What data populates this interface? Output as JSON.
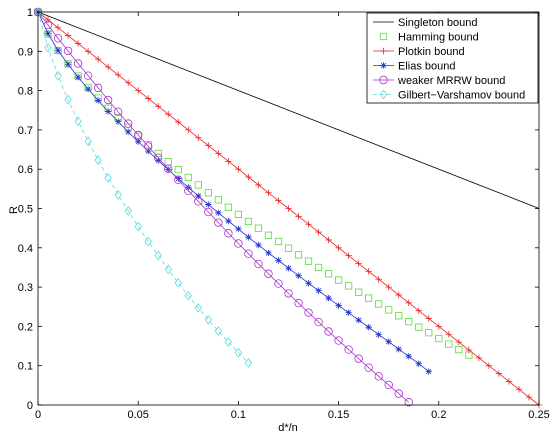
{
  "chart_data": {
    "type": "line",
    "title": "",
    "xlabel": "d*/n",
    "ylabel": "R",
    "xlim": [
      0,
      0.25
    ],
    "ylim": [
      0,
      1
    ],
    "xticks": [
      0,
      0.05,
      0.1,
      0.15,
      0.2,
      0.25
    ],
    "xtick_labels": [
      "0",
      "0.05",
      "0.1",
      "0.15",
      "0.2",
      "0.25"
    ],
    "yticks": [
      0,
      0.1,
      0.2,
      0.3,
      0.4,
      0.5,
      0.6,
      0.7,
      0.8,
      0.9,
      1
    ],
    "ytick_labels": [
      "0",
      "0.1",
      "0.2",
      "0.3",
      "0.4",
      "0.5",
      "0.6",
      "0.7",
      "0.8",
      "0.9",
      "1"
    ],
    "grid": false,
    "legend_position": "top-right",
    "series": [
      {
        "name": "Singleton bound",
        "color": "#000000",
        "marker": "none",
        "line": "solid",
        "linewidth": 0.8,
        "x": [
          0,
          0.25
        ],
        "y": [
          1,
          0.5
        ]
      },
      {
        "name": "Hamming bound",
        "color": "#55dd33",
        "marker": "square",
        "line": "none",
        "x": [
          0,
          0.005,
          0.01,
          0.015,
          0.02,
          0.025,
          0.03,
          0.035,
          0.04,
          0.045,
          0.05,
          0.055,
          0.06,
          0.065,
          0.07,
          0.075,
          0.08,
          0.085,
          0.09,
          0.095,
          0.1,
          0.105,
          0.11,
          0.115,
          0.12,
          0.125,
          0.13,
          0.135,
          0.14,
          0.145,
          0.15,
          0.155,
          0.16,
          0.165,
          0.17,
          0.175,
          0.18,
          0.185,
          0.19,
          0.195,
          0.2,
          0.205,
          0.21,
          0.215
        ],
        "y": [
          1,
          0.944,
          0.902,
          0.868,
          0.837,
          0.808,
          0.781,
          0.755,
          0.731,
          0.707,
          0.684,
          0.662,
          0.64,
          0.619,
          0.599,
          0.579,
          0.56,
          0.54,
          0.522,
          0.503,
          0.485,
          0.467,
          0.45,
          0.432,
          0.416,
          0.399,
          0.382,
          0.366,
          0.35,
          0.334,
          0.318,
          0.303,
          0.287,
          0.272,
          0.257,
          0.242,
          0.227,
          0.212,
          0.198,
          0.184,
          0.169,
          0.155,
          0.141,
          0.127
        ]
      },
      {
        "name": "Plotkin bound",
        "color": "#ee2222",
        "marker": "plus",
        "line": "solid",
        "linewidth": 0.8,
        "x": [
          0,
          0.005,
          0.01,
          0.015,
          0.02,
          0.025,
          0.03,
          0.035,
          0.04,
          0.045,
          0.05,
          0.055,
          0.06,
          0.065,
          0.07,
          0.075,
          0.08,
          0.085,
          0.09,
          0.095,
          0.1,
          0.105,
          0.11,
          0.115,
          0.12,
          0.125,
          0.13,
          0.135,
          0.14,
          0.145,
          0.15,
          0.155,
          0.16,
          0.165,
          0.17,
          0.175,
          0.18,
          0.185,
          0.19,
          0.195,
          0.2,
          0.205,
          0.21,
          0.215,
          0.22,
          0.225,
          0.23,
          0.235,
          0.24,
          0.245,
          0.25
        ],
        "y": [
          1,
          0.98,
          0.96,
          0.94,
          0.92,
          0.9,
          0.88,
          0.86,
          0.84,
          0.82,
          0.8,
          0.78,
          0.76,
          0.74,
          0.72,
          0.7,
          0.68,
          0.66,
          0.64,
          0.62,
          0.6,
          0.58,
          0.56,
          0.54,
          0.52,
          0.5,
          0.48,
          0.46,
          0.44,
          0.42,
          0.4,
          0.38,
          0.36,
          0.34,
          0.32,
          0.3,
          0.28,
          0.26,
          0.24,
          0.22,
          0.2,
          0.18,
          0.16,
          0.14,
          0.12,
          0.1,
          0.08,
          0.06,
          0.04,
          0.02,
          0
        ]
      },
      {
        "name": "Elias bound",
        "color": "#2233cc",
        "marker": "star",
        "line": "solid",
        "linewidth": 0.8,
        "x": [
          0,
          0.005,
          0.01,
          0.015,
          0.02,
          0.025,
          0.03,
          0.035,
          0.04,
          0.045,
          0.05,
          0.055,
          0.06,
          0.065,
          0.07,
          0.075,
          0.08,
          0.085,
          0.09,
          0.095,
          0.1,
          0.105,
          0.11,
          0.115,
          0.12,
          0.125,
          0.13,
          0.135,
          0.14,
          0.145,
          0.15,
          0.155,
          0.16,
          0.165,
          0.17,
          0.175,
          0.18,
          0.185,
          0.19,
          0.195
        ],
        "y": [
          1,
          0.945,
          0.902,
          0.867,
          0.834,
          0.804,
          0.775,
          0.747,
          0.721,
          0.695,
          0.67,
          0.646,
          0.622,
          0.599,
          0.576,
          0.554,
          0.532,
          0.51,
          0.489,
          0.468,
          0.448,
          0.427,
          0.407,
          0.387,
          0.368,
          0.348,
          0.329,
          0.31,
          0.291,
          0.272,
          0.253,
          0.235,
          0.216,
          0.198,
          0.179,
          0.161,
          0.142,
          0.124,
          0.105,
          0.085
        ]
      },
      {
        "name": "weaker MRRW bound",
        "color": "#aa33cc",
        "marker": "circle",
        "line": "solid",
        "linewidth": 0.8,
        "x": [
          0,
          0.005,
          0.01,
          0.015,
          0.02,
          0.025,
          0.03,
          0.035,
          0.04,
          0.045,
          0.05,
          0.055,
          0.06,
          0.065,
          0.07,
          0.075,
          0.08,
          0.085,
          0.09,
          0.095,
          0.1,
          0.105,
          0.11,
          0.115,
          0.12,
          0.125,
          0.13,
          0.135,
          0.14,
          0.145,
          0.15,
          0.155,
          0.16,
          0.165,
          0.17,
          0.175,
          0.18,
          0.185
        ],
        "y": [
          1,
          0.967,
          0.933,
          0.901,
          0.869,
          0.838,
          0.807,
          0.776,
          0.746,
          0.716,
          0.687,
          0.658,
          0.629,
          0.601,
          0.573,
          0.545,
          0.518,
          0.491,
          0.464,
          0.437,
          0.411,
          0.385,
          0.359,
          0.334,
          0.309,
          0.284,
          0.259,
          0.235,
          0.211,
          0.187,
          0.164,
          0.141,
          0.118,
          0.095,
          0.073,
          0.051,
          0.029,
          0.007
        ]
      },
      {
        "name": "Gilbert−Varshamov bound",
        "color": "#55dddd",
        "marker": "diamond",
        "line": "dashed",
        "linewidth": 0.8,
        "x": [
          0,
          0.005,
          0.01,
          0.015,
          0.02,
          0.025,
          0.03,
          0.035,
          0.04,
          0.045,
          0.05,
          0.055,
          0.06,
          0.065,
          0.07,
          0.075,
          0.08,
          0.085,
          0.09,
          0.095,
          0.1,
          0.105
        ],
        "y": [
          1,
          0.909,
          0.838,
          0.777,
          0.722,
          0.671,
          0.623,
          0.578,
          0.535,
          0.494,
          0.454,
          0.416,
          0.38,
          0.345,
          0.311,
          0.278,
          0.247,
          0.217,
          0.188,
          0.16,
          0.133,
          0.107
        ]
      }
    ]
  }
}
